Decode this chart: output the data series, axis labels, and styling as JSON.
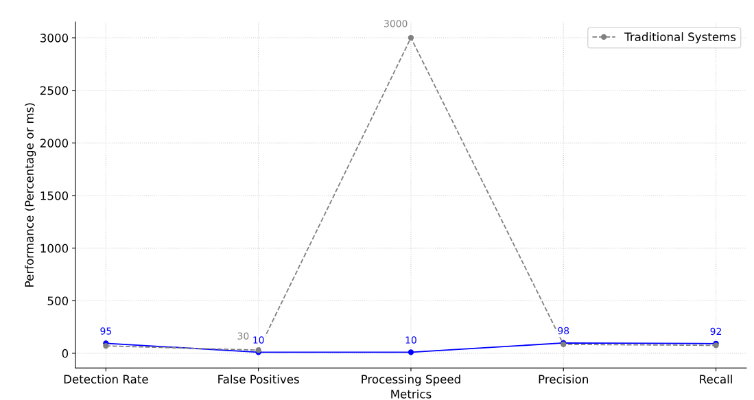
{
  "chart_data": {
    "type": "line",
    "xlabel": "Metrics",
    "ylabel": "Performance (Percentage or ms)",
    "categories": [
      "Detection Rate",
      "False Positives",
      "Processing Speed",
      "Precision",
      "Recall"
    ],
    "series": [
      {
        "name": "Traditional Systems",
        "color": "#808080",
        "values": [
          70,
          30,
          3000,
          85,
          75
        ],
        "line_style": "dashed",
        "value_labels": [
          null,
          "30",
          "3000",
          null,
          null
        ]
      },
      {
        "color": "#0000ff",
        "values": [
          95,
          10,
          10,
          98,
          92
        ],
        "line_style": "solid",
        "value_labels": [
          "95",
          "10",
          "10",
          "98",
          "92"
        ]
      }
    ],
    "ylim": [
      -140,
      3150
    ],
    "yticks": [
      0,
      500,
      1000,
      1500,
      2000,
      2500,
      3000
    ],
    "grid": true,
    "legend": "top right",
    "marker": "circle"
  }
}
